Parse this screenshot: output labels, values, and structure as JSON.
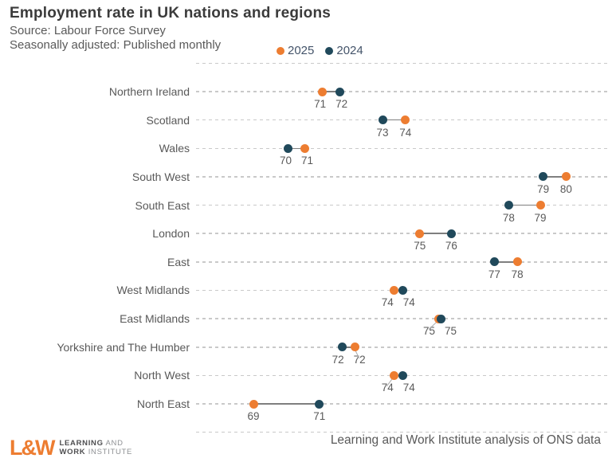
{
  "header": {
    "title": "Employment rate in UK nations and regions",
    "subtitle1": "Source: Labour Force Survey",
    "subtitle2": "Seasonally adjusted: Published monthly"
  },
  "legend": {
    "items": [
      {
        "label": "2025",
        "color": "#ED7D31"
      },
      {
        "label": "2024",
        "color": "#20495B"
      }
    ]
  },
  "colors": {
    "series_2025": "#ED7D31",
    "series_2024": "#20495B",
    "gridline": "#C9C9C9",
    "connector": "#7F7F7F",
    "text": "#595959",
    "title": "#3B3B3B"
  },
  "footer": {
    "logo_mark": "L&W",
    "logo_line1_bold": "LEARNING",
    "logo_line1_rest": " AND",
    "logo_line2_bold": "WORK",
    "logo_line2_rest": " INSTITUTE",
    "credit": "Learning and Work Institute analysis of ONS data"
  },
  "chart_data": {
    "type": "scatter",
    "variant": "dumbbell-dot-plot",
    "title": "Employment rate in UK nations and regions",
    "series": [
      "2025",
      "2024"
    ],
    "x_domain_estimate": [
      67.5,
      81
    ],
    "grid": "dashed-horizontal",
    "legend_position": "top",
    "regions": [
      {
        "name": "Northern Ireland",
        "v2025": 71,
        "v2024": 72,
        "pos2025": 71.4,
        "pos2024": 72.0,
        "leader": false
      },
      {
        "name": "Scotland",
        "v2025": 74,
        "v2024": 73,
        "pos2025": 74.3,
        "pos2024": 73.5,
        "leader": false
      },
      {
        "name": "Wales",
        "v2025": 71,
        "v2024": 70,
        "pos2025": 70.8,
        "pos2024": 70.2,
        "leader": false
      },
      {
        "name": "South West",
        "v2025": 80,
        "v2024": 79,
        "pos2025": 79.9,
        "pos2024": 79.1,
        "leader": false
      },
      {
        "name": "South East",
        "v2025": 79,
        "v2024": 78,
        "pos2025": 79.0,
        "pos2024": 77.9,
        "leader": false
      },
      {
        "name": "London",
        "v2025": 75,
        "v2024": 76,
        "pos2025": 74.8,
        "pos2024": 75.9,
        "leader": false
      },
      {
        "name": "East",
        "v2025": 78,
        "v2024": 77,
        "pos2025": 78.2,
        "pos2024": 77.4,
        "leader": false
      },
      {
        "name": "West Midlands",
        "v2025": 74,
        "v2024": 74,
        "pos2025": 73.9,
        "pos2024": 74.2,
        "leader": false
      },
      {
        "name": "East Midlands",
        "v2025": 75,
        "v2024": 75,
        "pos2025": 75.45,
        "pos2024": 75.55,
        "leader": true
      },
      {
        "name": "Yorkshire and The Humber",
        "v2025": 72,
        "v2024": 72,
        "pos2025": 72.55,
        "pos2024": 72.1,
        "leader": true
      },
      {
        "name": "North West",
        "v2025": 74,
        "v2024": 74,
        "pos2025": 73.9,
        "pos2024": 74.2,
        "leader": true
      },
      {
        "name": "North East",
        "v2025": 69,
        "v2024": 71,
        "pos2025": 69.0,
        "pos2024": 71.3,
        "leader": false
      }
    ]
  }
}
